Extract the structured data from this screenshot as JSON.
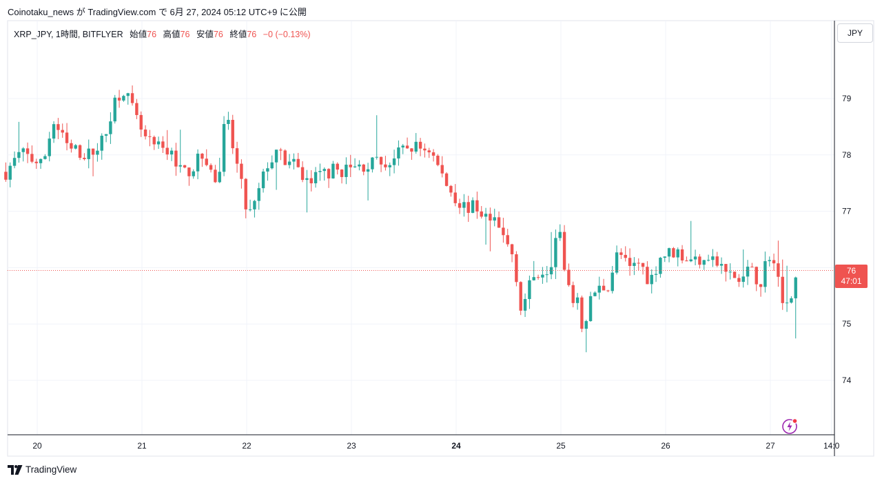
{
  "header": {
    "publish_line": "Coinotaku_news が TradingView.com で 6月 27, 2024 05:12 UTC+9 に公開"
  },
  "legend": {
    "symbol": "XRP_JPY, 1時間, BITFLYER",
    "open_label": "始値",
    "open_value": "76",
    "high_label": "高値",
    "high_value": "76",
    "low_label": "安値",
    "low_value": "76",
    "close_label": "終値",
    "close_value": "76",
    "change": "−0 (−0.13%)"
  },
  "currency": "JPY",
  "price_badge": {
    "price": "76",
    "countdown": "47:01"
  },
  "brand": "TradingView",
  "colors": {
    "up": "#26a69a",
    "down": "#ef5350",
    "grid": "#f0f3fa",
    "axis": "#131722"
  },
  "chart_data": {
    "type": "candlestick",
    "interval": "1h",
    "ylim": [
      73.0,
      80.0
    ],
    "y_ticks": [
      74,
      75,
      76,
      77,
      78,
      79
    ],
    "x_ticks": [
      "20",
      "21",
      "22",
      "23",
      "24",
      "25",
      "26",
      "27",
      "14:0"
    ],
    "x_tick_positions_days": [
      20,
      21,
      22,
      23,
      24,
      25,
      26,
      27,
      27.5833
    ],
    "bold_ticks": [
      "24"
    ],
    "xlim_days": [
      19.7,
      28.3
    ],
    "last_price": 76,
    "current_price_line": 75.95,
    "anchors": [
      [
        19.7,
        77.7
      ],
      [
        19.85,
        78.05
      ],
      [
        20.05,
        77.8
      ],
      [
        20.15,
        78.6
      ],
      [
        20.3,
        78.1
      ],
      [
        20.5,
        78.0
      ],
      [
        20.65,
        78.3
      ],
      [
        20.72,
        78.9
      ],
      [
        20.82,
        79.2
      ],
      [
        20.95,
        78.6
      ],
      [
        21.05,
        78.2
      ],
      [
        21.3,
        78.0
      ],
      [
        21.4,
        77.65
      ],
      [
        21.6,
        78.0
      ],
      [
        21.72,
        77.4
      ],
      [
        21.8,
        78.7
      ],
      [
        21.92,
        77.7
      ],
      [
        22.0,
        77.0
      ],
      [
        22.05,
        76.95
      ],
      [
        22.2,
        77.85
      ],
      [
        22.3,
        78.0
      ],
      [
        22.45,
        77.8
      ],
      [
        22.6,
        77.5
      ],
      [
        22.75,
        77.7
      ],
      [
        23.0,
        77.75
      ],
      [
        23.2,
        77.85
      ],
      [
        23.35,
        77.85
      ],
      [
        23.55,
        78.15
      ],
      [
        23.75,
        78.1
      ],
      [
        23.9,
        77.5
      ],
      [
        24.05,
        77.1
      ],
      [
        24.2,
        77.05
      ],
      [
        24.4,
        76.7
      ],
      [
        24.55,
        76.2
      ],
      [
        24.62,
        75.25
      ],
      [
        24.75,
        75.9
      ],
      [
        24.9,
        76.05
      ],
      [
        24.98,
        76.8
      ],
      [
        25.05,
        75.6
      ],
      [
        25.15,
        75.4
      ],
      [
        25.22,
        74.85
      ],
      [
        25.3,
        75.55
      ],
      [
        25.45,
        75.7
      ],
      [
        25.55,
        76.3
      ],
      [
        25.65,
        75.95
      ],
      [
        25.75,
        76.1
      ],
      [
        25.85,
        75.75
      ],
      [
        25.95,
        76.2
      ],
      [
        26.1,
        76.3
      ],
      [
        26.25,
        76.1
      ],
      [
        26.4,
        76.25
      ],
      [
        26.55,
        75.95
      ],
      [
        26.7,
        75.75
      ],
      [
        26.8,
        75.95
      ],
      [
        26.9,
        75.75
      ],
      [
        27.0,
        76.3
      ],
      [
        27.1,
        75.55
      ],
      [
        27.18,
        75.35
      ],
      [
        27.22,
        75.65
      ],
      [
        27.27,
        75.95
      ]
    ]
  }
}
